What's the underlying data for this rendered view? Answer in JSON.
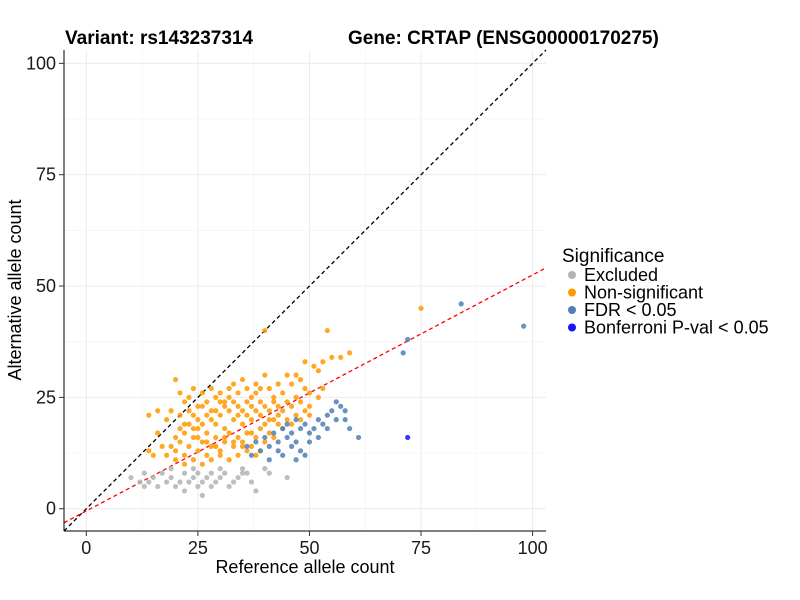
{
  "chart_data": {
    "type": "scatter",
    "title_left": "Variant: rs143237314",
    "title_right": "Gene: CRTAP (ENSG00000170275)",
    "xlabel": "Reference allele count",
    "ylabel": "Alternative allele count",
    "xlim": [
      -5,
      103
    ],
    "ylim": [
      -5,
      103
    ],
    "x_ticks": [
      0,
      25,
      50,
      75,
      100
    ],
    "y_ticks": [
      0,
      25,
      50,
      75,
      100
    ],
    "grid": true,
    "reference_lines": [
      {
        "name": "identity",
        "slope": 1,
        "intercept": 0,
        "color": "#000000",
        "style": "dashed"
      },
      {
        "name": "regression",
        "slope": 0.53,
        "intercept": -0.5,
        "color": "#ff0000",
        "style": "dashed"
      }
    ],
    "legend": {
      "title": "Significance",
      "position": "right",
      "entries": [
        {
          "label": "Excluded",
          "color": "#b3b3b3"
        },
        {
          "label": "Non-significant",
          "color": "#ff9900"
        },
        {
          "label": "FDR < 0.05",
          "color": "#4f7fb5"
        },
        {
          "label": "Bonferroni P-val < 0.05",
          "color": "#1515ff"
        }
      ]
    },
    "series": [
      {
        "name": "Excluded",
        "color": "#b3b3b3",
        "points": [
          [
            10,
            7
          ],
          [
            12,
            6
          ],
          [
            13,
            5
          ],
          [
            14,
            6
          ],
          [
            15,
            7
          ],
          [
            16,
            5
          ],
          [
            17,
            8
          ],
          [
            18,
            6
          ],
          [
            19,
            7
          ],
          [
            20,
            5
          ],
          [
            21,
            6
          ],
          [
            22,
            8
          ],
          [
            22,
            4
          ],
          [
            23,
            6
          ],
          [
            24,
            7
          ],
          [
            25,
            5
          ],
          [
            25,
            8
          ],
          [
            26,
            3
          ],
          [
            26,
            6
          ],
          [
            27,
            7
          ],
          [
            28,
            8
          ],
          [
            28,
            5
          ],
          [
            29,
            6
          ],
          [
            30,
            7
          ],
          [
            31,
            8
          ],
          [
            32,
            5
          ],
          [
            33,
            6
          ],
          [
            34,
            7
          ],
          [
            35,
            8
          ],
          [
            36,
            8
          ],
          [
            37,
            6
          ],
          [
            38,
            4
          ],
          [
            40,
            9
          ],
          [
            41,
            8
          ],
          [
            45,
            7
          ],
          [
            13,
            8
          ],
          [
            19,
            9
          ],
          [
            24,
            9
          ],
          [
            30,
            9
          ],
          [
            35,
            9
          ]
        ]
      },
      {
        "name": "Non-significant",
        "color": "#ff9900",
        "points": [
          [
            14,
            21
          ],
          [
            16,
            22
          ],
          [
            18,
            20
          ],
          [
            20,
            29
          ],
          [
            21,
            26
          ],
          [
            22,
            24
          ],
          [
            23,
            25
          ],
          [
            24,
            27
          ],
          [
            25,
            23
          ],
          [
            26,
            26
          ],
          [
            27,
            24
          ],
          [
            28,
            27
          ],
          [
            29,
            25
          ],
          [
            30,
            26
          ],
          [
            31,
            24
          ],
          [
            32,
            27
          ],
          [
            33,
            28
          ],
          [
            34,
            26
          ],
          [
            35,
            29
          ],
          [
            36,
            27
          ],
          [
            37,
            25
          ],
          [
            38,
            28
          ],
          [
            39,
            27
          ],
          [
            40,
            30
          ],
          [
            41,
            27
          ],
          [
            42,
            25
          ],
          [
            43,
            28
          ],
          [
            44,
            26
          ],
          [
            45,
            30
          ],
          [
            46,
            28
          ],
          [
            47,
            25
          ],
          [
            48,
            29
          ],
          [
            49,
            27
          ],
          [
            50,
            26
          ],
          [
            51,
            32
          ],
          [
            52,
            31
          ],
          [
            53,
            33
          ],
          [
            54,
            40
          ],
          [
            55,
            34
          ],
          [
            57,
            34
          ],
          [
            59,
            35
          ],
          [
            40,
            40
          ],
          [
            18,
            12
          ],
          [
            19,
            14
          ],
          [
            20,
            13
          ],
          [
            21,
            15
          ],
          [
            22,
            12
          ],
          [
            23,
            14
          ],
          [
            24,
            16
          ],
          [
            25,
            13
          ],
          [
            26,
            15
          ],
          [
            27,
            12
          ],
          [
            28,
            14
          ],
          [
            29,
            16
          ],
          [
            30,
            13
          ],
          [
            31,
            15
          ],
          [
            32,
            17
          ],
          [
            33,
            14
          ],
          [
            34,
            16
          ],
          [
            35,
            15
          ],
          [
            36,
            17
          ],
          [
            37,
            14
          ],
          [
            38,
            16
          ],
          [
            39,
            18
          ],
          [
            40,
            15
          ],
          [
            41,
            17
          ],
          [
            42,
            16
          ],
          [
            43,
            19
          ],
          [
            44,
            18
          ],
          [
            45,
            20
          ],
          [
            46,
            19
          ],
          [
            47,
            21
          ],
          [
            48,
            20
          ],
          [
            49,
            22
          ],
          [
            50,
            21
          ],
          [
            20,
            16
          ],
          [
            21,
            18
          ],
          [
            22,
            17
          ],
          [
            23,
            19
          ],
          [
            24,
            18
          ],
          [
            25,
            20
          ],
          [
            26,
            19
          ],
          [
            27,
            21
          ],
          [
            28,
            20
          ],
          [
            29,
            22
          ],
          [
            30,
            21
          ],
          [
            31,
            23
          ],
          [
            32,
            22
          ],
          [
            33,
            24
          ],
          [
            34,
            23
          ],
          [
            35,
            22
          ],
          [
            36,
            21
          ],
          [
            37,
            23
          ],
          [
            38,
            22
          ],
          [
            39,
            24
          ],
          [
            40,
            23
          ],
          [
            41,
            22
          ],
          [
            42,
            24
          ],
          [
            43,
            23
          ],
          [
            44,
            22
          ],
          [
            45,
            24
          ],
          [
            19,
            22
          ],
          [
            21,
            21
          ],
          [
            23,
            22
          ],
          [
            25,
            18
          ],
          [
            27,
            17
          ],
          [
            29,
            19
          ],
          [
            31,
            18
          ],
          [
            33,
            20
          ],
          [
            35,
            19
          ],
          [
            37,
            20
          ],
          [
            39,
            21
          ],
          [
            41,
            20
          ],
          [
            43,
            21
          ],
          [
            14,
            13
          ],
          [
            15,
            12
          ],
          [
            17,
            14
          ],
          [
            75,
            45
          ],
          [
            16,
            17
          ],
          [
            20,
            11
          ],
          [
            22,
            10
          ],
          [
            24,
            11
          ],
          [
            26,
            10
          ],
          [
            28,
            11
          ],
          [
            30,
            12
          ],
          [
            32,
            11
          ],
          [
            34,
            12
          ],
          [
            36,
            13
          ],
          [
            38,
            12
          ],
          [
            25,
            16
          ],
          [
            27,
            15
          ],
          [
            29,
            14
          ],
          [
            31,
            16
          ],
          [
            33,
            15
          ],
          [
            35,
            14
          ],
          [
            37,
            17
          ],
          [
            39,
            13
          ],
          [
            22,
            19
          ],
          [
            24,
            21
          ],
          [
            26,
            23
          ],
          [
            28,
            22
          ],
          [
            30,
            24
          ],
          [
            32,
            25
          ],
          [
            34,
            21
          ],
          [
            36,
            24
          ],
          [
            38,
            26
          ],
          [
            40,
            19
          ],
          [
            42,
            20
          ],
          [
            46,
            23
          ],
          [
            48,
            24
          ],
          [
            50,
            23
          ],
          [
            52,
            25
          ],
          [
            53,
            27
          ],
          [
            47,
            30
          ],
          [
            49,
            33
          ]
        ]
      },
      {
        "name": "FDR < 0.05",
        "color": "#4f7fb5",
        "points": [
          [
            36,
            14
          ],
          [
            37,
            12
          ],
          [
            38,
            15
          ],
          [
            39,
            13
          ],
          [
            40,
            16
          ],
          [
            41,
            14
          ],
          [
            42,
            17
          ],
          [
            43,
            15
          ],
          [
            44,
            18
          ],
          [
            45,
            16
          ],
          [
            46,
            17
          ],
          [
            47,
            15
          ],
          [
            48,
            18
          ],
          [
            49,
            19
          ],
          [
            50,
            17
          ],
          [
            51,
            18
          ],
          [
            52,
            20
          ],
          [
            53,
            19
          ],
          [
            54,
            21
          ],
          [
            55,
            22
          ],
          [
            56,
            20
          ],
          [
            57,
            23
          ],
          [
            58,
            22
          ],
          [
            59,
            18
          ],
          [
            61,
            16
          ],
          [
            44,
            12
          ],
          [
            46,
            14
          ],
          [
            48,
            13
          ],
          [
            50,
            15
          ],
          [
            52,
            16
          ],
          [
            54,
            18
          ],
          [
            56,
            24
          ],
          [
            58,
            20
          ],
          [
            47,
            11
          ],
          [
            49,
            12
          ],
          [
            41,
            11
          ],
          [
            43,
            13
          ],
          [
            45,
            19
          ],
          [
            47,
            20
          ],
          [
            71,
            35
          ],
          [
            72,
            38
          ],
          [
            84,
            46
          ],
          [
            98,
            41
          ]
        ]
      },
      {
        "name": "Bonferroni P-val < 0.05",
        "color": "#1515ff",
        "points": [
          [
            72,
            16
          ]
        ]
      }
    ]
  }
}
